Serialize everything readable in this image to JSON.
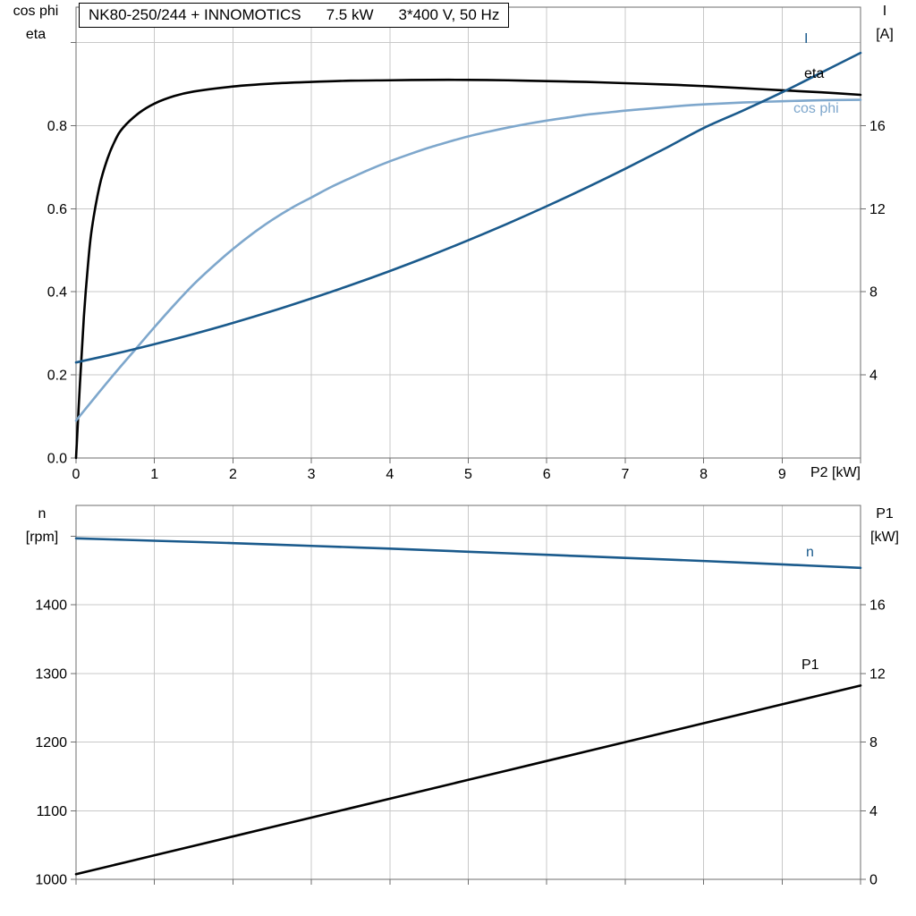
{
  "colors": {
    "black_curve": "#000000",
    "dark_blue": "#1a5a8c",
    "light_blue": "#7ea7cc",
    "grid": "#c8c8c8",
    "axis_border": "#6e6e6e"
  },
  "chart_data": [
    {
      "id": "top",
      "type": "line",
      "title": "NK80-250/244 + INNOMOTICS   7.5 kW   3*400 V, 50 Hz",
      "title_parts": [
        "NK80-250/244 + INNOMOTICS",
        "7.5 kW",
        "3*400 V, 50 Hz"
      ],
      "x_axis": {
        "label": "P2 [kW]",
        "range": [
          0,
          10
        ],
        "tick_values": [
          0,
          1,
          2,
          3,
          4,
          5,
          6,
          7,
          8,
          9
        ],
        "tick_labels": [
          "0",
          "1",
          "2",
          "3",
          "4",
          "5",
          "6",
          "7",
          "8",
          "9"
        ]
      },
      "y_left": {
        "label_lines": [
          "cos phi",
          "eta"
        ],
        "range": [
          0,
          1.085
        ],
        "grid_values": [
          0.2,
          0.4,
          0.6,
          0.8,
          1.0
        ],
        "tick_values": [
          0,
          0.2,
          0.4,
          0.6,
          0.8
        ],
        "tick_labels": [
          "0.0",
          "0.2",
          "0.4",
          "0.6",
          "0.8"
        ]
      },
      "y_right": {
        "label_lines": [
          "I",
          "[A]"
        ],
        "range": [
          0,
          21.7
        ],
        "tick_values": [
          4,
          8,
          12,
          16
        ],
        "tick_labels": [
          "4",
          "8",
          "12",
          "16"
        ]
      },
      "series": [
        {
          "name": "eta",
          "label": "eta",
          "axis": "left",
          "color": "#000000",
          "points": [
            [
              0,
              0
            ],
            [
              0.05,
              0.18
            ],
            [
              0.1,
              0.34
            ],
            [
              0.15,
              0.46
            ],
            [
              0.2,
              0.55
            ],
            [
              0.3,
              0.655
            ],
            [
              0.4,
              0.72
            ],
            [
              0.5,
              0.765
            ],
            [
              0.6,
              0.795
            ],
            [
              0.8,
              0.83
            ],
            [
              1,
              0.853
            ],
            [
              1.25,
              0.871
            ],
            [
              1.5,
              0.882
            ],
            [
              2,
              0.894
            ],
            [
              2.5,
              0.901
            ],
            [
              3,
              0.905
            ],
            [
              3.5,
              0.908
            ],
            [
              4,
              0.909
            ],
            [
              4.5,
              0.91
            ],
            [
              5,
              0.91
            ],
            [
              5.5,
              0.909
            ],
            [
              6,
              0.907
            ],
            [
              6.5,
              0.905
            ],
            [
              7,
              0.902
            ],
            [
              7.5,
              0.899
            ],
            [
              8,
              0.895
            ],
            [
              8.5,
              0.89
            ],
            [
              9,
              0.885
            ],
            [
              9.5,
              0.88
            ],
            [
              10,
              0.874
            ]
          ]
        },
        {
          "name": "cos_phi",
          "label": "cos phi",
          "axis": "left",
          "color": "#7ea7cc",
          "points": [
            [
              0,
              0.09
            ],
            [
              0.25,
              0.148
            ],
            [
              0.5,
              0.205
            ],
            [
              0.75,
              0.26
            ],
            [
              1,
              0.315
            ],
            [
              1.25,
              0.368
            ],
            [
              1.5,
              0.418
            ],
            [
              1.75,
              0.462
            ],
            [
              2,
              0.503
            ],
            [
              2.25,
              0.54
            ],
            [
              2.5,
              0.573
            ],
            [
              2.75,
              0.602
            ],
            [
              3,
              0.627
            ],
            [
              3.25,
              0.652
            ],
            [
              3.5,
              0.674
            ],
            [
              3.75,
              0.695
            ],
            [
              4,
              0.714
            ],
            [
              4.25,
              0.731
            ],
            [
              4.5,
              0.747
            ],
            [
              4.75,
              0.761
            ],
            [
              5,
              0.774
            ],
            [
              5.25,
              0.785
            ],
            [
              5.5,
              0.795
            ],
            [
              5.75,
              0.804
            ],
            [
              6,
              0.812
            ],
            [
              6.25,
              0.819
            ],
            [
              6.5,
              0.826
            ],
            [
              6.75,
              0.831
            ],
            [
              7,
              0.836
            ],
            [
              7.25,
              0.84
            ],
            [
              7.5,
              0.844
            ],
            [
              7.75,
              0.848
            ],
            [
              8,
              0.851
            ],
            [
              8.5,
              0.8555
            ],
            [
              9,
              0.8585
            ],
            [
              9.5,
              0.861
            ],
            [
              10,
              0.862
            ]
          ]
        },
        {
          "name": "I",
          "label": "I",
          "axis": "right",
          "color": "#1a5a8c",
          "points": [
            [
              0,
              4.6
            ],
            [
              0.5,
              5.02
            ],
            [
              1,
              5.48
            ],
            [
              1.5,
              5.97
            ],
            [
              2,
              6.5
            ],
            [
              2.5,
              7.07
            ],
            [
              3,
              7.68
            ],
            [
              3.5,
              8.32
            ],
            [
              4,
              9
            ],
            [
              4.5,
              9.72
            ],
            [
              5,
              10.48
            ],
            [
              5.5,
              11.28
            ],
            [
              6,
              12.12
            ],
            [
              6.5,
              13
            ],
            [
              7,
              13.92
            ],
            [
              7.5,
              14.88
            ],
            [
              8,
              15.88
            ],
            [
              8.5,
              16.72
            ],
            [
              9,
              17.6
            ],
            [
              9.5,
              18.55
            ],
            [
              10,
              19.5
            ]
          ]
        }
      ]
    },
    {
      "id": "bottom",
      "type": "line",
      "title": "",
      "x_axis": {
        "label": "",
        "range": [
          0,
          10
        ],
        "tick_values": [],
        "tick_labels": []
      },
      "y_left": {
        "label_lines": [
          "n",
          "[rpm]"
        ],
        "range": [
          1000,
          1545
        ],
        "grid_values": [
          1100,
          1200,
          1300,
          1400,
          1500
        ],
        "tick_values": [
          1000,
          1100,
          1200,
          1300,
          1400
        ],
        "tick_labels": [
          "1000",
          "1100",
          "1200",
          "1300",
          "1400"
        ]
      },
      "y_right": {
        "label_lines": [
          "P1",
          "[kW]"
        ],
        "range": [
          0,
          21.8
        ],
        "tick_values": [
          0,
          4,
          8,
          12,
          16
        ],
        "tick_labels": [
          "0",
          "4",
          "8",
          "12",
          "16"
        ]
      },
      "series": [
        {
          "name": "n",
          "label": "n",
          "axis": "left",
          "color": "#1a5a8c",
          "points": [
            [
              0,
              1497
            ],
            [
              1,
              1493.5
            ],
            [
              2,
              1490
            ],
            [
              3,
              1486
            ],
            [
              4,
              1482
            ],
            [
              5,
              1477.5
            ],
            [
              6,
              1473
            ],
            [
              7,
              1468.5
            ],
            [
              8,
              1464
            ],
            [
              9,
              1459
            ],
            [
              10,
              1454
            ]
          ]
        },
        {
          "name": "P1",
          "label": "P1",
          "axis": "right",
          "color": "#000000",
          "points": [
            [
              0,
              0.3
            ],
            [
              1,
              1.4
            ],
            [
              2,
              2.5
            ],
            [
              3,
              3.6
            ],
            [
              4,
              4.7
            ],
            [
              5,
              5.8
            ],
            [
              6,
              6.9
            ],
            [
              7,
              8
            ],
            [
              8,
              9.1
            ],
            [
              9,
              10.2
            ],
            [
              10,
              11.3
            ]
          ]
        }
      ]
    }
  ]
}
